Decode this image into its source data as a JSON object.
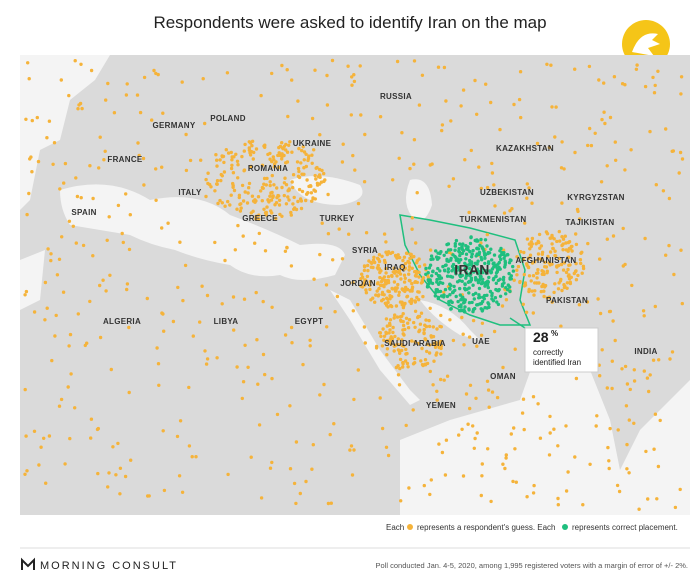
{
  "title": "Respondents were asked to identify Iran on the map",
  "labels": [
    "RUSSIA",
    "GERMANY",
    "POLAND",
    "UKRAINE",
    "FRANCE",
    "ROMANIA",
    "KAZAKHSTAN",
    "ITALY",
    "UZBEKISTAN",
    "KYRGYZSTAN",
    "SPAIN",
    "GREECE",
    "TURKEY",
    "TURKMENISTAN",
    "TAJIKISTAN",
    "SYRIA",
    "IRAQ",
    "AFGHANISTAN",
    "JORDAN",
    "PAKISTAN",
    "ALGERIA",
    "LIBYA",
    "EGYPT",
    "SAUDI ARABIA",
    "UAE",
    "INDIA",
    "OMAN",
    "YEMEN"
  ],
  "highlight": "IRAN",
  "callout": {
    "number": "28",
    "unit": "%",
    "line1": "correctly",
    "line2": "identified Iran"
  },
  "legend": {
    "each1": "Each",
    "guess": "represents a respondent's guess. Each",
    "correct": "represents correct placement."
  },
  "footer": {
    "brand": "MORNING CONSULT",
    "note": "Poll conducted Jan. 4-5, 2020, among 1,995 registered voters with a margin of error of +/- 2%."
  }
}
